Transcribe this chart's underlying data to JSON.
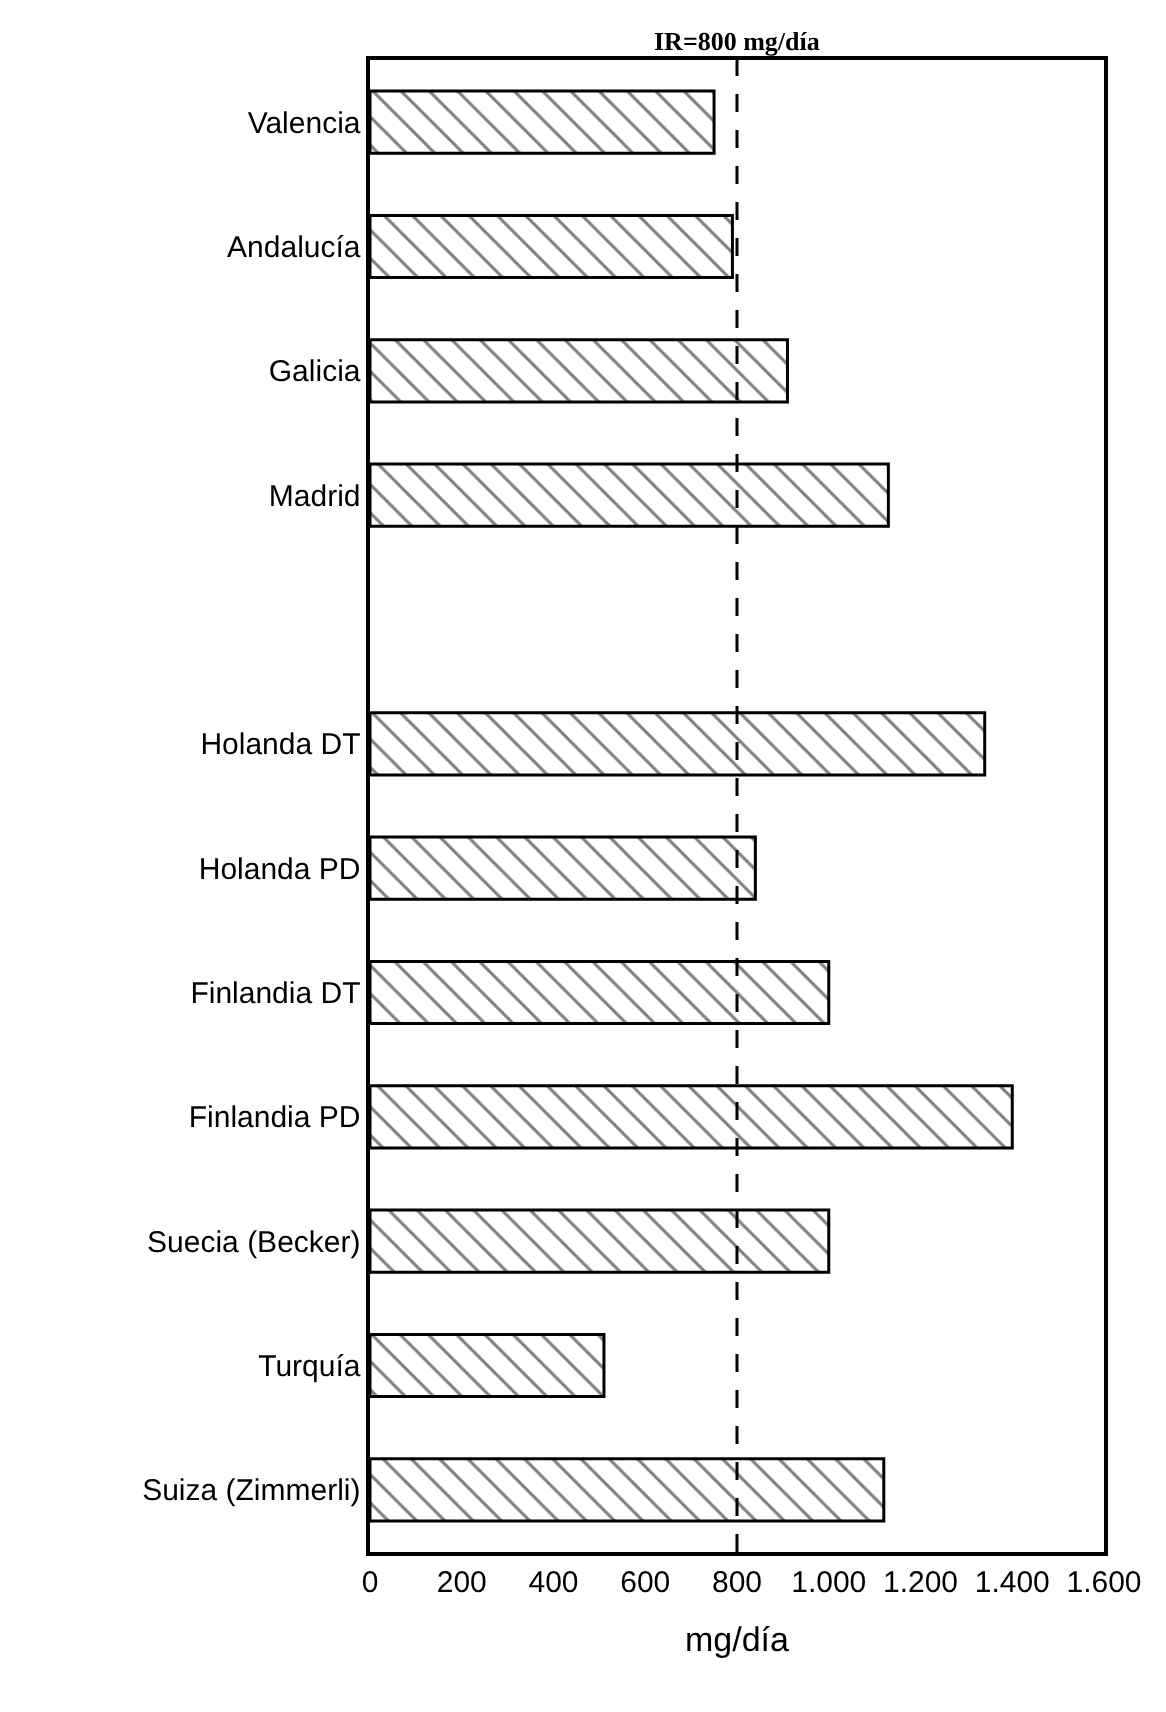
{
  "chart_data": {
    "type": "bar",
    "orientation": "horizontal",
    "xlabel": "mg/día",
    "categories": [
      "Valencia",
      "Andalucía",
      "Galicia",
      "Madrid",
      null,
      "Holanda DT",
      "Holanda PD",
      "Finlandia DT",
      "Finlandia PD",
      "Suecia (Becker)",
      "Turquía",
      "Suiza (Zimmerli)"
    ],
    "values": [
      750,
      790,
      910,
      1130,
      null,
      1340,
      840,
      1000,
      1400,
      1000,
      510,
      1120
    ],
    "color": "#000000",
    "xlim": [
      0,
      1600
    ],
    "xticks": [
      0,
      200,
      400,
      600,
      800,
      {
        "value": 1000,
        "label": "1.000"
      },
      {
        "value": 1200,
        "label": "1.200"
      },
      {
        "value": 1400,
        "label": "1.400"
      },
      {
        "value": 1600,
        "label": "1.600"
      }
    ],
    "ref_lines": [
      {
        "axis": "x",
        "value": 800,
        "label": "IR=800 mg/día",
        "line_style": "dashed",
        "color": "#000000"
      }
    ]
  }
}
